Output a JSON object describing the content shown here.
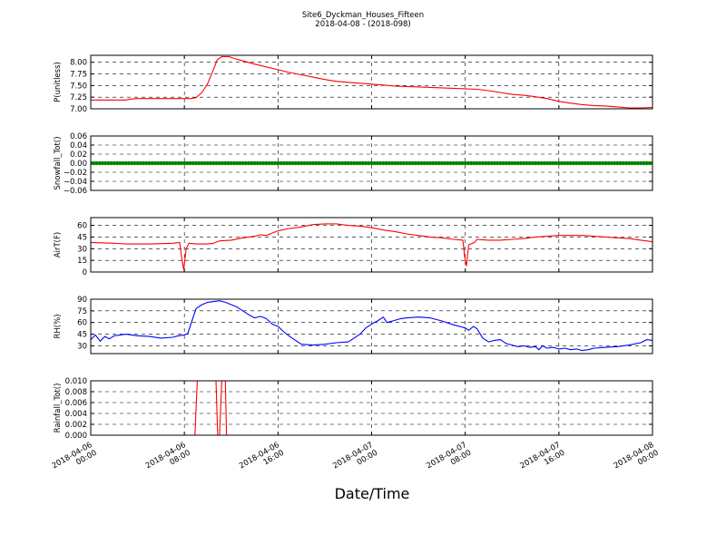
{
  "figure": {
    "title_line1": "Site6_Dyckman_Houses_Fifteen",
    "title_line2": "2018-04-08 - (2018-098)",
    "xlabel": "Date/Time"
  },
  "x_ticks": [
    {
      "line1": "2018-04-06",
      "line2": "00:00",
      "hour": 0
    },
    {
      "line1": "2018-04-06",
      "line2": "08:00",
      "hour": 8
    },
    {
      "line1": "2018-04-06",
      "line2": "16:00",
      "hour": 16
    },
    {
      "line1": "2018-04-07",
      "line2": "00:00",
      "hour": 24
    },
    {
      "line1": "2018-04-07",
      "line2": "08:00",
      "hour": 32
    },
    {
      "line1": "2018-04-07",
      "line2": "16:00",
      "hour": 40
    },
    {
      "line1": "2018-04-08",
      "line2": "00:00",
      "hour": 48
    }
  ],
  "chart_data": [
    {
      "type": "line",
      "ylabel": "P(unitless)",
      "color": "#ff0000",
      "ylim": [
        7.0,
        8.15
      ],
      "yticks": [
        7.0,
        7.25,
        7.5,
        7.75,
        8.0
      ],
      "ytick_labels": [
        "7.00",
        "7.25",
        "7.50",
        "7.75",
        "8.00"
      ],
      "points": [
        [
          0,
          7.19
        ],
        [
          3,
          7.19
        ],
        [
          3.5,
          7.21
        ],
        [
          4,
          7.22
        ],
        [
          6,
          7.22
        ],
        [
          8,
          7.22
        ],
        [
          8.5,
          7.22
        ],
        [
          9,
          7.24
        ],
        [
          9.5,
          7.35
        ],
        [
          10,
          7.55
        ],
        [
          10.5,
          7.85
        ],
        [
          10.8,
          8.05
        ],
        [
          11.2,
          8.12
        ],
        [
          11.8,
          8.12
        ],
        [
          12.3,
          8.08
        ],
        [
          13,
          8.03
        ],
        [
          14,
          7.96
        ],
        [
          15,
          7.9
        ],
        [
          16,
          7.84
        ],
        [
          17,
          7.78
        ],
        [
          18,
          7.73
        ],
        [
          19,
          7.68
        ],
        [
          20,
          7.63
        ],
        [
          21,
          7.59
        ],
        [
          22,
          7.57
        ],
        [
          23,
          7.55
        ],
        [
          24,
          7.53
        ],
        [
          25,
          7.51
        ],
        [
          26,
          7.49
        ],
        [
          27,
          7.48
        ],
        [
          28,
          7.47
        ],
        [
          29,
          7.46
        ],
        [
          30,
          7.45
        ],
        [
          31,
          7.44
        ],
        [
          32,
          7.43
        ],
        [
          33,
          7.42
        ],
        [
          34,
          7.39
        ],
        [
          35,
          7.35
        ],
        [
          36,
          7.31
        ],
        [
          37,
          7.29
        ],
        [
          38,
          7.26
        ],
        [
          39,
          7.22
        ],
        [
          40,
          7.16
        ],
        [
          41,
          7.12
        ],
        [
          42,
          7.09
        ],
        [
          43,
          7.07
        ],
        [
          44,
          7.06
        ],
        [
          45,
          7.04
        ],
        [
          46,
          7.02
        ],
        [
          47,
          7.02
        ],
        [
          48,
          7.03
        ]
      ]
    },
    {
      "type": "scatter",
      "ylabel": "Snowfall_Tot()",
      "color": "#008000",
      "ylim": [
        -0.06,
        0.06
      ],
      "yticks": [
        -0.06,
        -0.04,
        -0.02,
        0.0,
        0.02,
        0.04,
        0.06
      ],
      "ytick_labels": [
        "−0.06",
        "−0.04",
        "−0.02",
        "0.00",
        "0.02",
        "0.04",
        "0.06"
      ],
      "constant_value": 0.0,
      "sample_interval_hours": 0.25
    },
    {
      "type": "line",
      "ylabel": "AirT(F)",
      "color": "#ff0000",
      "ylim": [
        0,
        70
      ],
      "yticks": [
        0,
        15,
        30,
        45,
        60
      ],
      "ytick_labels": [
        "0",
        "15",
        "30",
        "45",
        "60"
      ],
      "points": [
        [
          0,
          38
        ],
        [
          2,
          37
        ],
        [
          3,
          36
        ],
        [
          5,
          36
        ],
        [
          7,
          37
        ],
        [
          7.6,
          38
        ],
        [
          7.8,
          15
        ],
        [
          7.95,
          3
        ],
        [
          8.15,
          30
        ],
        [
          8.4,
          37
        ],
        [
          9,
          36
        ],
        [
          10,
          36
        ],
        [
          10.5,
          37
        ],
        [
          11,
          40
        ],
        [
          12,
          41
        ],
        [
          13,
          44
        ],
        [
          14,
          46
        ],
        [
          14.5,
          48
        ],
        [
          15,
          47
        ],
        [
          15.5,
          50
        ],
        [
          16,
          53
        ],
        [
          17,
          56
        ],
        [
          18,
          58
        ],
        [
          19,
          61
        ],
        [
          20,
          62
        ],
        [
          21,
          62
        ],
        [
          22,
          60
        ],
        [
          23,
          59
        ],
        [
          24,
          57
        ],
        [
          25,
          54
        ],
        [
          26,
          52
        ],
        [
          27,
          49
        ],
        [
          28,
          47
        ],
        [
          29,
          45
        ],
        [
          30,
          44
        ],
        [
          31,
          42
        ],
        [
          31.8,
          41
        ],
        [
          31.95,
          20
        ],
        [
          32.1,
          8
        ],
        [
          32.3,
          35
        ],
        [
          32.8,
          38
        ],
        [
          33,
          42
        ],
        [
          34,
          41
        ],
        [
          35,
          41
        ],
        [
          36,
          42
        ],
        [
          37,
          43
        ],
        [
          38,
          45
        ],
        [
          39,
          46
        ],
        [
          40,
          47
        ],
        [
          41,
          47
        ],
        [
          42,
          47
        ],
        [
          43,
          46
        ],
        [
          44,
          45
        ],
        [
          45,
          44
        ],
        [
          46,
          43
        ],
        [
          47,
          41
        ],
        [
          48,
          39
        ]
      ]
    },
    {
      "type": "line",
      "ylabel": "RH(%)",
      "color": "#0000ff",
      "ylim": [
        20,
        90
      ],
      "yticks": [
        30,
        45,
        60,
        75,
        90
      ],
      "ytick_labels": [
        "30",
        "45",
        "60",
        "75",
        "90"
      ],
      "points": [
        [
          0,
          38
        ],
        [
          0.4,
          44
        ],
        [
          0.8,
          36
        ],
        [
          1.2,
          42
        ],
        [
          1.6,
          39
        ],
        [
          2,
          43
        ],
        [
          3,
          45
        ],
        [
          4,
          43
        ],
        [
          5,
          42
        ],
        [
          6,
          40
        ],
        [
          7,
          41
        ],
        [
          7.5,
          43
        ],
        [
          8,
          44
        ],
        [
          8.3,
          46
        ],
        [
          8.6,
          60
        ],
        [
          9,
          78
        ],
        [
          9.5,
          83
        ],
        [
          10,
          86
        ],
        [
          10.5,
          87
        ],
        [
          11,
          88
        ],
        [
          11.5,
          86
        ],
        [
          12,
          83
        ],
        [
          12.5,
          80
        ],
        [
          13,
          75
        ],
        [
          13.5,
          70
        ],
        [
          14,
          66
        ],
        [
          14.5,
          68
        ],
        [
          15,
          65
        ],
        [
          15.5,
          58
        ],
        [
          16,
          55
        ],
        [
          16.5,
          48
        ],
        [
          17,
          42
        ],
        [
          17.5,
          37
        ],
        [
          18,
          32
        ],
        [
          19,
          31
        ],
        [
          20,
          32
        ],
        [
          21,
          34
        ],
        [
          22,
          35
        ],
        [
          22.5,
          40
        ],
        [
          23,
          45
        ],
        [
          23.5,
          53
        ],
        [
          24,
          58
        ],
        [
          24.5,
          62
        ],
        [
          25,
          67
        ],
        [
          25.3,
          60
        ],
        [
          25.8,
          62
        ],
        [
          26.5,
          65
        ],
        [
          27,
          66
        ],
        [
          28,
          67
        ],
        [
          29,
          66
        ],
        [
          30,
          62
        ],
        [
          31,
          57
        ],
        [
          32,
          53
        ],
        [
          32.3,
          50
        ],
        [
          32.7,
          55
        ],
        [
          33,
          52
        ],
        [
          33.5,
          40
        ],
        [
          34,
          35
        ],
        [
          34.5,
          37
        ],
        [
          35,
          38
        ],
        [
          35.5,
          33
        ],
        [
          36,
          31
        ],
        [
          36.5,
          29
        ],
        [
          37,
          30
        ],
        [
          37.5,
          28
        ],
        [
          38,
          29
        ],
        [
          38.3,
          25
        ],
        [
          38.6,
          30
        ],
        [
          39,
          27
        ],
        [
          39.5,
          28
        ],
        [
          40,
          26
        ],
        [
          40.5,
          27
        ],
        [
          41,
          25
        ],
        [
          41.5,
          26
        ],
        [
          42,
          24
        ],
        [
          42.5,
          25
        ],
        [
          43,
          27
        ],
        [
          44,
          28
        ],
        [
          45,
          29
        ],
        [
          46,
          31
        ],
        [
          47,
          34
        ],
        [
          47.5,
          38
        ],
        [
          48,
          37
        ]
      ]
    },
    {
      "type": "line",
      "ylabel": "Rainfall_Tot()",
      "color": "#ff0000",
      "ylim": [
        0.0,
        0.01
      ],
      "yticks": [
        0.0,
        0.002,
        0.004,
        0.006,
        0.008,
        0.01
      ],
      "ytick_labels": [
        "0.000",
        "0.002",
        "0.004",
        "0.006",
        "0.008",
        "0.010"
      ],
      "points": [
        [
          0,
          0
        ],
        [
          8.9,
          0
        ],
        [
          9.1,
          0.01
        ],
        [
          9.2,
          0.014
        ],
        [
          10.5,
          0.014
        ],
        [
          10.7,
          0.01
        ],
        [
          10.85,
          0
        ],
        [
          11.0,
          0
        ],
        [
          11.2,
          0.01
        ],
        [
          11.3,
          0.014
        ],
        [
          11.5,
          0.01
        ],
        [
          11.6,
          0
        ],
        [
          48,
          0
        ]
      ]
    }
  ]
}
